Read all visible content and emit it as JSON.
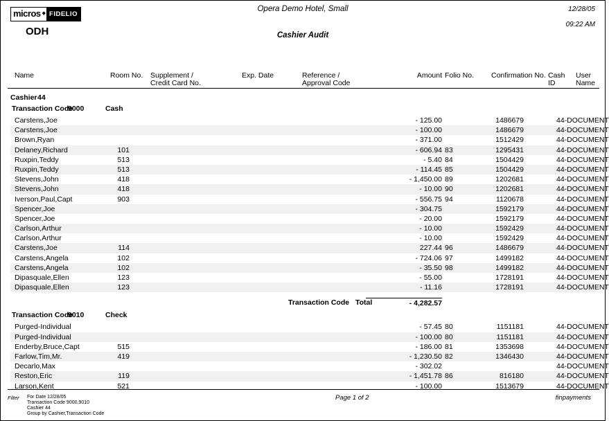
{
  "logo": {
    "micros": "micros",
    "diamond": "diamond-icon",
    "fidelio": "FIDELIO",
    "property_code": "ODH"
  },
  "header": {
    "hotel_name": "Opera Demo Hotel, Small",
    "report_title": "Cashier Audit",
    "date": "12/28/05",
    "time": "09:22 AM"
  },
  "columns": {
    "name": "Name",
    "room": "Room No.",
    "supplement_1": "Supplement /",
    "supplement_2": "Credit Card No.",
    "exp_date": "Exp. Date",
    "reference_1": "Reference /",
    "reference_2": "Approval Code",
    "amount": "Amount",
    "folio": "Folio No.",
    "confirmation": "Confirmation No.",
    "cash_1": "Cash",
    "cash_2": "ID",
    "user_1": "User",
    "user_2": "Name"
  },
  "cashier": {
    "label": "Cashier",
    "number": "44"
  },
  "sections": [
    {
      "code_label": "Transaction Code",
      "code": "9000",
      "code_name": "Cash",
      "rows": [
        {
          "name": "Carstens,Joe",
          "room": "",
          "amount": "- 125.00",
          "folio": "",
          "confirmation": "1486679",
          "cash_user": "44-DOCUMENT"
        },
        {
          "name": "Carstens,Joe",
          "room": "",
          "amount": "- 100.00",
          "folio": "",
          "confirmation": "1486679",
          "cash_user": "44-DOCUMENT"
        },
        {
          "name": "Brown,Ryan",
          "room": "",
          "amount": "- 371.00",
          "folio": "",
          "confirmation": "1512429",
          "cash_user": "44-DOCUMENT"
        },
        {
          "name": "Delaney,Richard",
          "room": "101",
          "amount": "- 606.94",
          "folio": "83",
          "confirmation": "1295431",
          "cash_user": "44-DOCUMENT"
        },
        {
          "name": "Ruxpin,Teddy",
          "room": "513",
          "amount": "- 5.40",
          "folio": "84",
          "confirmation": "1504429",
          "cash_user": "44-DOCUMENT"
        },
        {
          "name": "Ruxpin,Teddy",
          "room": "513",
          "amount": "- 114.45",
          "folio": "85",
          "confirmation": "1504429",
          "cash_user": "44-DOCUMENT"
        },
        {
          "name": "Stevens,John",
          "room": "418",
          "amount": "- 1,450.00",
          "folio": "89",
          "confirmation": "1202681",
          "cash_user": "44-DOCUMENT"
        },
        {
          "name": "Stevens,John",
          "room": "418",
          "amount": "- 10.00",
          "folio": "90",
          "confirmation": "1202681",
          "cash_user": "44-DOCUMENT"
        },
        {
          "name": "Iverson,Paul,Capt",
          "room": "903",
          "amount": "- 556.75",
          "folio": "94",
          "confirmation": "1120678",
          "cash_user": "44-DOCUMENT"
        },
        {
          "name": "Spencer,Joe",
          "room": "",
          "amount": "- 304.75",
          "folio": "",
          "confirmation": "1592179",
          "cash_user": "44-DOCUMENT"
        },
        {
          "name": "Spencer,Joe",
          "room": "",
          "amount": "- 20.00",
          "folio": "",
          "confirmation": "1592179",
          "cash_user": "44-DOCUMENT"
        },
        {
          "name": "Carlson,Arthur",
          "room": "",
          "amount": "- 10.00",
          "folio": "",
          "confirmation": "1592429",
          "cash_user": "44-DOCUMENT"
        },
        {
          "name": "Carlson,Arthur",
          "room": "",
          "amount": "- 10.00",
          "folio": "",
          "confirmation": "1592429",
          "cash_user": "44-DOCUMENT"
        },
        {
          "name": "Carstens,Joe",
          "room": "114",
          "amount": "227.44",
          "folio": "96",
          "confirmation": "1486679",
          "cash_user": "44-DOCUMENT"
        },
        {
          "name": "Carstens,Angela",
          "room": "102",
          "amount": "- 724.06",
          "folio": "97",
          "confirmation": "1499182",
          "cash_user": "44-DOCUMENT"
        },
        {
          "name": "Carstens,Angela",
          "room": "102",
          "amount": "- 35.50",
          "folio": "98",
          "confirmation": "1499182",
          "cash_user": "44-DOCUMENT"
        },
        {
          "name": "Dipasquale,Ellen",
          "room": "123",
          "amount": "- 55.00",
          "folio": "",
          "confirmation": "1728191",
          "cash_user": "44-DOCUMENT"
        },
        {
          "name": "Dipasquale,Ellen",
          "room": "123",
          "amount": "- 11.16",
          "folio": "",
          "confirmation": "1728191",
          "cash_user": "44-DOCUMENT"
        }
      ],
      "total": {
        "label": "Transaction Code",
        "total_label": "Total",
        "amount": "- 4,282.57"
      }
    },
    {
      "code_label": "Transaction Code",
      "code": "9010",
      "code_name": "Check",
      "rows": [
        {
          "name": "Purged-Individual",
          "room": "",
          "amount": "- 57.45",
          "folio": "80",
          "confirmation": "1151181",
          "cash_user": "44-DOCUMENT"
        },
        {
          "name": "Purged-Individual",
          "room": "",
          "amount": "- 100.00",
          "folio": "80",
          "confirmation": "1151181",
          "cash_user": "44-DOCUMENT"
        },
        {
          "name": "Enderby,Bruce,Capt",
          "room": "515",
          "amount": "- 186.00",
          "folio": "81",
          "confirmation": "1353698",
          "cash_user": "44-DOCUMENT"
        },
        {
          "name": "Farlow,Tim,Mr.",
          "room": "419",
          "amount": "- 1,230.50",
          "folio": "82",
          "confirmation": "1346430",
          "cash_user": "44-DOCUMENT"
        },
        {
          "name": "Decarlo,Max",
          "room": "",
          "amount": "- 302.02",
          "folio": "",
          "confirmation": "",
          "cash_user": "44-DOCUMENT"
        },
        {
          "name": "Reston,Eric",
          "room": "119",
          "amount": "- 1,451.78",
          "folio": "86",
          "confirmation": "816180",
          "cash_user": "44-DOCUMENT"
        },
        {
          "name": "Larson,Kent",
          "room": "521",
          "amount": "- 100.00",
          "folio": "",
          "confirmation": "1513679",
          "cash_user": "44-DOCUMENT"
        }
      ]
    }
  ],
  "footer": {
    "filter_label": "Filter",
    "filter_lines": [
      "For Date 12/28/05",
      "Transaction Code 9000,9010",
      "Cashier 44",
      "Group by Cashier,Transaction Code"
    ],
    "page_number": "Page 1  of 2",
    "report_name": "finpayments"
  }
}
